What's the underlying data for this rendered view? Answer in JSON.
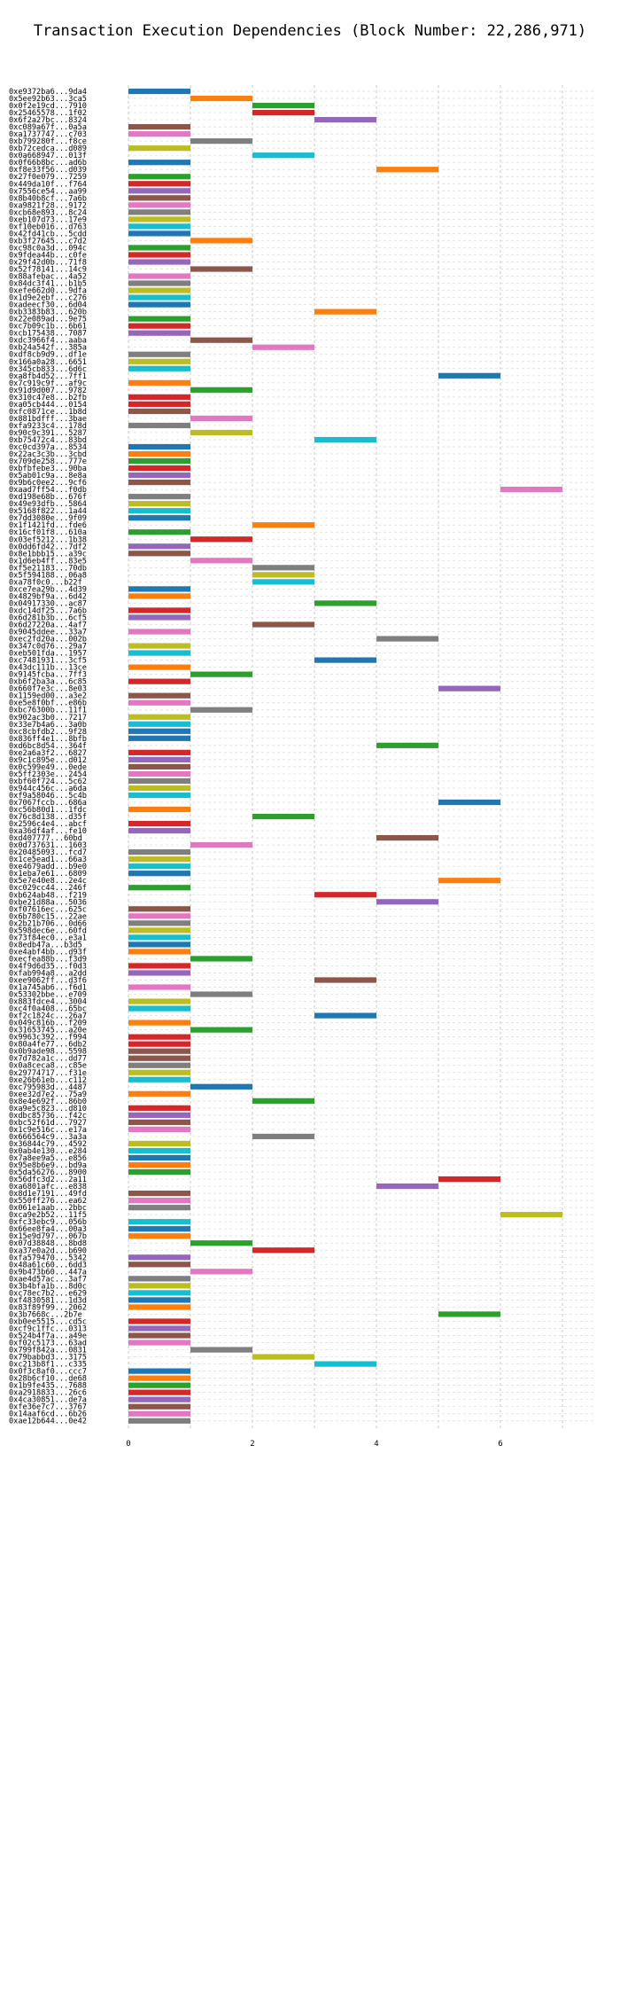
{
  "chart_data": {
    "type": "bar",
    "orientation": "horizontal",
    "title": "Transaction Execution Dependencies (Block Number: 22,286,971)",
    "xlabel": "",
    "ylabel": "",
    "xlim": [
      0,
      7.5
    ],
    "x_ticks": [
      "0",
      "2",
      "4",
      "6"
    ],
    "x_tick_values": [
      0,
      2,
      4,
      6
    ],
    "grid": true,
    "legend": "none",
    "palette": [
      "#1f77b4",
      "#ff7f0e",
      "#2ca02c",
      "#d62728",
      "#9467bd",
      "#8c564b",
      "#e377c2",
      "#7f7f7f",
      "#bcbd22",
      "#17becf"
    ],
    "transactions": [
      {
        "label": "0xe9372ba6...9da4",
        "start": 0,
        "color": "#1f77b4"
      },
      {
        "label": "0x5ee92b63...3ca5",
        "start": 1,
        "color": "#ff7f0e"
      },
      {
        "label": "0x0f2e19cd...7910",
        "start": 2,
        "color": "#2ca02c"
      },
      {
        "label": "0x25465578...1f02",
        "start": 2,
        "color": "#d62728"
      },
      {
        "label": "0x6f2a27bc...8324",
        "start": 3,
        "color": "#9467bd"
      },
      {
        "label": "0xc089a67f...0a5a",
        "start": 0,
        "color": "#8c564b"
      },
      {
        "label": "0xa1737747...c703",
        "start": 0,
        "color": "#e377c2"
      },
      {
        "label": "0xb799280f...f8ce",
        "start": 1,
        "color": "#7f7f7f"
      },
      {
        "label": "0xb72cedca...d089",
        "start": 0,
        "color": "#bcbd22"
      },
      {
        "label": "0x0a668947...013f",
        "start": 2,
        "color": "#17becf"
      },
      {
        "label": "0x0f66b8bc...ad6b",
        "start": 0,
        "color": "#1f77b4"
      },
      {
        "label": "0xf8e33f56...d039",
        "start": 4,
        "color": "#ff7f0e"
      },
      {
        "label": "0x27f0e079...7259",
        "start": 0,
        "color": "#2ca02c"
      },
      {
        "label": "0x449da10f...f764",
        "start": 0,
        "color": "#d62728"
      },
      {
        "label": "0x7556ce54...aa99",
        "start": 0,
        "color": "#9467bd"
      },
      {
        "label": "0x8b40b8cf...7a6b",
        "start": 0,
        "color": "#8c564b"
      },
      {
        "label": "0xa9821f28...9172",
        "start": 0,
        "color": "#e377c2"
      },
      {
        "label": "0xcb68e893...8c24",
        "start": 0,
        "color": "#7f7f7f"
      },
      {
        "label": "0xeb107d73...17e9",
        "start": 0,
        "color": "#bcbd22"
      },
      {
        "label": "0xf10eb016...d763",
        "start": 0,
        "color": "#17becf"
      },
      {
        "label": "0x42fd41cb...5cdd",
        "start": 0,
        "color": "#1f77b4"
      },
      {
        "label": "0xb3f27645...c7d2",
        "start": 1,
        "color": "#ff7f0e"
      },
      {
        "label": "0xc98c0a3d...094c",
        "start": 0,
        "color": "#2ca02c"
      },
      {
        "label": "0x9fdea44b...c0fe",
        "start": 0,
        "color": "#d62728"
      },
      {
        "label": "0x29f42d0b...71f8",
        "start": 0,
        "color": "#9467bd"
      },
      {
        "label": "0x52f78141...14c9",
        "start": 1,
        "color": "#8c564b"
      },
      {
        "label": "0x88afebac...4a52",
        "start": 0,
        "color": "#e377c2"
      },
      {
        "label": "0x84dc3f41...b1b5",
        "start": 0,
        "color": "#7f7f7f"
      },
      {
        "label": "0xefe662d0...9dfa",
        "start": 0,
        "color": "#bcbd22"
      },
      {
        "label": "0x1d9e2ebf...c276",
        "start": 0,
        "color": "#17becf"
      },
      {
        "label": "0xadeecf30...6d04",
        "start": 0,
        "color": "#1f77b4"
      },
      {
        "label": "0xb3383b83...620b",
        "start": 3,
        "color": "#ff7f0e"
      },
      {
        "label": "0x22e089ad...9e75",
        "start": 0,
        "color": "#2ca02c"
      },
      {
        "label": "0xc7b09c1b...6b61",
        "start": 0,
        "color": "#d62728"
      },
      {
        "label": "0xcb175438...7087",
        "start": 0,
        "color": "#9467bd"
      },
      {
        "label": "0xdc3966f4...aaba",
        "start": 1,
        "color": "#8c564b"
      },
      {
        "label": "0xb24a542f...385a",
        "start": 2,
        "color": "#e377c2"
      },
      {
        "label": "0xdf8cb9d9...df1e",
        "start": 0,
        "color": "#7f7f7f"
      },
      {
        "label": "0x166a0a28...6651",
        "start": 0,
        "color": "#bcbd22"
      },
      {
        "label": "0x345cb833...6d6c",
        "start": 0,
        "color": "#17becf"
      },
      {
        "label": "0xa8fb4d52...7ff1",
        "start": 5,
        "color": "#1f77b4"
      },
      {
        "label": "0x7c919c9f...af9c",
        "start": 0,
        "color": "#ff7f0e"
      },
      {
        "label": "0x91d9d007...9782",
        "start": 1,
        "color": "#2ca02c"
      },
      {
        "label": "0x310c47e8...b2fb",
        "start": 0,
        "color": "#d62728"
      },
      {
        "label": "0xa05cb444...0154",
        "start": 0,
        "color": "#d62728"
      },
      {
        "label": "0xfc0871ce...1b8d",
        "start": 0,
        "color": "#8c564b"
      },
      {
        "label": "0x881bdfff...3bae",
        "start": 1,
        "color": "#e377c2"
      },
      {
        "label": "0xfa9233c4...178d",
        "start": 0,
        "color": "#7f7f7f"
      },
      {
        "label": "0x90c9c391...5287",
        "start": 1,
        "color": "#bcbd22"
      },
      {
        "label": "0xb75472c4...83bd",
        "start": 3,
        "color": "#17becf"
      },
      {
        "label": "0xc0cd397a...8534",
        "start": 0,
        "color": "#1f77b4"
      },
      {
        "label": "0x22ac3c3b...3cbd",
        "start": 0,
        "color": "#ff7f0e"
      },
      {
        "label": "0x709de258...777e",
        "start": 0,
        "color": "#2ca02c"
      },
      {
        "label": "0xbfbfebe3...90ba",
        "start": 0,
        "color": "#d62728"
      },
      {
        "label": "0x5ab01c9a...8e8a",
        "start": 0,
        "color": "#9467bd"
      },
      {
        "label": "0x9b6c0ee2...9cf6",
        "start": 0,
        "color": "#8c564b"
      },
      {
        "label": "0xaad7ff54...f0db",
        "start": 6,
        "color": "#e377c2"
      },
      {
        "label": "0xd198e68b...676f",
        "start": 0,
        "color": "#7f7f7f"
      },
      {
        "label": "0x49e93dfb...5864",
        "start": 0,
        "color": "#bcbd22"
      },
      {
        "label": "0x5168f822...1a44",
        "start": 0,
        "color": "#17becf"
      },
      {
        "label": "0x7dd3080e...9f09",
        "start": 0,
        "color": "#1f77b4"
      },
      {
        "label": "0x1f1421fd...fde6",
        "start": 2,
        "color": "#ff7f0e"
      },
      {
        "label": "0x16cf01f8...610a",
        "start": 0,
        "color": "#2ca02c"
      },
      {
        "label": "0x03ef5212...1b38",
        "start": 1,
        "color": "#d62728"
      },
      {
        "label": "0x0dd6fd42...7df2",
        "start": 0,
        "color": "#9467bd"
      },
      {
        "label": "0x8e1bbb15...a39c",
        "start": 0,
        "color": "#8c564b"
      },
      {
        "label": "0x1d6eb4ff...83e5",
        "start": 1,
        "color": "#e377c2"
      },
      {
        "label": "0xf5e21183...70db",
        "start": 2,
        "color": "#7f7f7f"
      },
      {
        "label": "0x5f594188...06a8",
        "start": 2,
        "color": "#bcbd22"
      },
      {
        "label": "0xa78f0c0...b22f",
        "start": 2,
        "color": "#17becf"
      },
      {
        "label": "0xce7ea29b...4d39",
        "start": 0,
        "color": "#1f77b4"
      },
      {
        "label": "0x4829bf9a...6d42",
        "start": 0,
        "color": "#ff7f0e"
      },
      {
        "label": "0x04917330...ac87",
        "start": 3,
        "color": "#2ca02c"
      },
      {
        "label": "0xdc14df25...7a6b",
        "start": 0,
        "color": "#d62728"
      },
      {
        "label": "0x6d281b3b...6cf5",
        "start": 0,
        "color": "#9467bd"
      },
      {
        "label": "0x6d27220a...4af7",
        "start": 2,
        "color": "#8c564b"
      },
      {
        "label": "0x9045ddee...33a7",
        "start": 0,
        "color": "#e377c2"
      },
      {
        "label": "0xec2fd20a...002b",
        "start": 4,
        "color": "#7f7f7f"
      },
      {
        "label": "0x347c0d76...29a7",
        "start": 0,
        "color": "#bcbd22"
      },
      {
        "label": "0xeb501fda...1957",
        "start": 0,
        "color": "#17becf"
      },
      {
        "label": "0xc7481931...3cf5",
        "start": 3,
        "color": "#1f77b4"
      },
      {
        "label": "0x43dc111b...13ce",
        "start": 0,
        "color": "#ff7f0e"
      },
      {
        "label": "0x9145fcba...7ff3",
        "start": 1,
        "color": "#2ca02c"
      },
      {
        "label": "0xb6f2ba3a...6c85",
        "start": 0,
        "color": "#d62728"
      },
      {
        "label": "0x660f7e3c...8e03",
        "start": 5,
        "color": "#9467bd"
      },
      {
        "label": "0x1159ed00...a3e2",
        "start": 0,
        "color": "#8c564b"
      },
      {
        "label": "0xe5e8f0bf...e86b",
        "start": 0,
        "color": "#e377c2"
      },
      {
        "label": "0xbc76300b...11f1",
        "start": 1,
        "color": "#7f7f7f"
      },
      {
        "label": "0x902ac3b0...7217",
        "start": 0,
        "color": "#bcbd22"
      },
      {
        "label": "0x33e7b4a6...3a0b",
        "start": 0,
        "color": "#17becf"
      },
      {
        "label": "0xc8cbfdb2...9f28",
        "start": 0,
        "color": "#1f77b4"
      },
      {
        "label": "0x836ff4e1...8bfb",
        "start": 0,
        "color": "#1f77b4"
      },
      {
        "label": "0xd6bc8d54...364f",
        "start": 4,
        "color": "#2ca02c"
      },
      {
        "label": "0xe2a6a3f2...6827",
        "start": 0,
        "color": "#d62728"
      },
      {
        "label": "0x9c1c895e...d012",
        "start": 0,
        "color": "#9467bd"
      },
      {
        "label": "0x0c599e49...0ede",
        "start": 0,
        "color": "#8c564b"
      },
      {
        "label": "0x5ff2303e...2454",
        "start": 0,
        "color": "#e377c2"
      },
      {
        "label": "0xbf60f724...5c62",
        "start": 0,
        "color": "#7f7f7f"
      },
      {
        "label": "0x944c456c...a6da",
        "start": 0,
        "color": "#bcbd22"
      },
      {
        "label": "0xf9a58046...5c4b",
        "start": 0,
        "color": "#17becf"
      },
      {
        "label": "0x7067fccb...686a",
        "start": 5,
        "color": "#1f77b4"
      },
      {
        "label": "0xc56b80d1...1fdc",
        "start": 0,
        "color": "#ff7f0e"
      },
      {
        "label": "0x76c8d138...d35f",
        "start": 2,
        "color": "#2ca02c"
      },
      {
        "label": "0x2596c4e4...abcf",
        "start": 0,
        "color": "#d62728"
      },
      {
        "label": "0xa36df4af...fe10",
        "start": 0,
        "color": "#9467bd"
      },
      {
        "label": "0xd407777...60bd",
        "start": 4,
        "color": "#8c564b"
      },
      {
        "label": "0x0d737631...1603",
        "start": 1,
        "color": "#e377c2"
      },
      {
        "label": "0x20485093...fcd7",
        "start": 0,
        "color": "#7f7f7f"
      },
      {
        "label": "0x1ce5ead1...66a3",
        "start": 0,
        "color": "#bcbd22"
      },
      {
        "label": "0xe4679add...b9e0",
        "start": 0,
        "color": "#17becf"
      },
      {
        "label": "0x1eba7e61...6809",
        "start": 0,
        "color": "#1f77b4"
      },
      {
        "label": "0x5e7e40e8...2e4c",
        "start": 5,
        "color": "#ff7f0e"
      },
      {
        "label": "0xc029cc44...246f",
        "start": 0,
        "color": "#2ca02c"
      },
      {
        "label": "0xb624ab48...f219",
        "start": 3,
        "color": "#d62728"
      },
      {
        "label": "0xbe21d88a...5036",
        "start": 4,
        "color": "#9467bd"
      },
      {
        "label": "0xf07616ec...625c",
        "start": 0,
        "color": "#8c564b"
      },
      {
        "label": "0x6b780c15...22ae",
        "start": 0,
        "color": "#e377c2"
      },
      {
        "label": "0x2b21b706...0d66",
        "start": 0,
        "color": "#7f7f7f"
      },
      {
        "label": "0x598dec6e...60fd",
        "start": 0,
        "color": "#bcbd22"
      },
      {
        "label": "0x73f84ec0...e3a1",
        "start": 0,
        "color": "#17becf"
      },
      {
        "label": "0x8edb47a...b3d5",
        "start": 0,
        "color": "#1f77b4"
      },
      {
        "label": "0xe4abf4bb...d93f",
        "start": 0,
        "color": "#ff7f0e"
      },
      {
        "label": "0xecfea88b...f3d9",
        "start": 1,
        "color": "#2ca02c"
      },
      {
        "label": "0x4f9d6d35...f0d3",
        "start": 0,
        "color": "#d62728"
      },
      {
        "label": "0xfab994a8...a2dd",
        "start": 0,
        "color": "#9467bd"
      },
      {
        "label": "0xee9062ff...d3f6",
        "start": 3,
        "color": "#8c564b"
      },
      {
        "label": "0x1a745ab6...f6d1",
        "start": 0,
        "color": "#e377c2"
      },
      {
        "label": "0x53302bbe...e709",
        "start": 1,
        "color": "#7f7f7f"
      },
      {
        "label": "0x883fdce4...3004",
        "start": 0,
        "color": "#bcbd22"
      },
      {
        "label": "0xc4f0a408...65bc",
        "start": 0,
        "color": "#17becf"
      },
      {
        "label": "0xf2c1824c...26a7",
        "start": 3,
        "color": "#1f77b4"
      },
      {
        "label": "0x049c816b...f209",
        "start": 0,
        "color": "#ff7f0e"
      },
      {
        "label": "0x31653745...a20e",
        "start": 1,
        "color": "#2ca02c"
      },
      {
        "label": "0x9963c392...f994",
        "start": 0,
        "color": "#d62728"
      },
      {
        "label": "0x80a4fe77...6db2",
        "start": 0,
        "color": "#d62728"
      },
      {
        "label": "0x0b9ade98...5598",
        "start": 0,
        "color": "#8c564b"
      },
      {
        "label": "0x7d782a1c...dd77",
        "start": 0,
        "color": "#8c564b"
      },
      {
        "label": "0x0a8ceca8...c85e",
        "start": 0,
        "color": "#7f7f7f"
      },
      {
        "label": "0x29774717...f31e",
        "start": 0,
        "color": "#bcbd22"
      },
      {
        "label": "0xe26b61eb...c112",
        "start": 0,
        "color": "#17becf"
      },
      {
        "label": "0xc795983d...4487",
        "start": 1,
        "color": "#1f77b4"
      },
      {
        "label": "0xee32d7e2...75a9",
        "start": 0,
        "color": "#ff7f0e"
      },
      {
        "label": "0x8e4e692f...86b0",
        "start": 2,
        "color": "#2ca02c"
      },
      {
        "label": "0xa9e5c823...d810",
        "start": 0,
        "color": "#d62728"
      },
      {
        "label": "0xdbc85736...f42c",
        "start": 0,
        "color": "#9467bd"
      },
      {
        "label": "0xbc52f61d...7927",
        "start": 0,
        "color": "#8c564b"
      },
      {
        "label": "0x1c9e516c...e17a",
        "start": 0,
        "color": "#e377c2"
      },
      {
        "label": "0x666564c9...3a3a",
        "start": 2,
        "color": "#7f7f7f"
      },
      {
        "label": "0x36844c79...4592",
        "start": 0,
        "color": "#bcbd22"
      },
      {
        "label": "0x0ab4e130...e284",
        "start": 0,
        "color": "#17becf"
      },
      {
        "label": "0x7a8ee9a5...e856",
        "start": 0,
        "color": "#1f77b4"
      },
      {
        "label": "0x95e8b6e9...bd9a",
        "start": 0,
        "color": "#ff7f0e"
      },
      {
        "label": "0x5da56276...8900",
        "start": 0,
        "color": "#2ca02c"
      },
      {
        "label": "0x56dfc3d2...2a11",
        "start": 5,
        "color": "#d62728"
      },
      {
        "label": "0xa6801afc...e838",
        "start": 4,
        "color": "#9467bd"
      },
      {
        "label": "0x8d1e7191...49fd",
        "start": 0,
        "color": "#8c564b"
      },
      {
        "label": "0x550ff276...ea62",
        "start": 0,
        "color": "#e377c2"
      },
      {
        "label": "0x061e1aab...2bbc",
        "start": 0,
        "color": "#7f7f7f"
      },
      {
        "label": "0xca9e2b52...11f5",
        "start": 6,
        "color": "#bcbd22"
      },
      {
        "label": "0xfc33ebc9...056b",
        "start": 0,
        "color": "#17becf"
      },
      {
        "label": "0x66ee8fa4...00a3",
        "start": 0,
        "color": "#1f77b4"
      },
      {
        "label": "0x15e9d797...067b",
        "start": 0,
        "color": "#ff7f0e"
      },
      {
        "label": "0x07d38848...8bd8",
        "start": 1,
        "color": "#2ca02c"
      },
      {
        "label": "0xa37e0a2d...b690",
        "start": 2,
        "color": "#d62728"
      },
      {
        "label": "0xfa579470...5342",
        "start": 0,
        "color": "#9467bd"
      },
      {
        "label": "0x48a61c60...6dd3",
        "start": 0,
        "color": "#8c564b"
      },
      {
        "label": "0x9b473b60...447a",
        "start": 1,
        "color": "#e377c2"
      },
      {
        "label": "0xae4d57ac...3af7",
        "start": 0,
        "color": "#7f7f7f"
      },
      {
        "label": "0x3b4bfa1b...8d0c",
        "start": 0,
        "color": "#bcbd22"
      },
      {
        "label": "0xc78ec7b2...e629",
        "start": 0,
        "color": "#17becf"
      },
      {
        "label": "0xf4830581...1d3d",
        "start": 0,
        "color": "#1f77b4"
      },
      {
        "label": "0x83f89f99...2062",
        "start": 0,
        "color": "#ff7f0e"
      },
      {
        "label": "0x3b7668c...2b7e",
        "start": 5,
        "color": "#2ca02c"
      },
      {
        "label": "0xb0ee5515...cd5c",
        "start": 0,
        "color": "#d62728"
      },
      {
        "label": "0xcf9c1ffc...0313",
        "start": 0,
        "color": "#9467bd"
      },
      {
        "label": "0x524b4f7a...a49e",
        "start": 0,
        "color": "#8c564b"
      },
      {
        "label": "0xf02c5173...63ad",
        "start": 0,
        "color": "#e377c2"
      },
      {
        "label": "0x799f842a...0831",
        "start": 1,
        "color": "#7f7f7f"
      },
      {
        "label": "0x79babbd3...3175",
        "start": 2,
        "color": "#bcbd22"
      },
      {
        "label": "0xc213b8f1...c335",
        "start": 3,
        "color": "#17becf"
      },
      {
        "label": "0x0f3c8af0...ccc7",
        "start": 0,
        "color": "#1f77b4"
      },
      {
        "label": "0x28b6cf10...de68",
        "start": 0,
        "color": "#ff7f0e"
      },
      {
        "label": "0x1b9fe435...7688",
        "start": 0,
        "color": "#2ca02c"
      },
      {
        "label": "0xa2918833...26c6",
        "start": 0,
        "color": "#d62728"
      },
      {
        "label": "0x4ca30851...de7a",
        "start": 0,
        "color": "#9467bd"
      },
      {
        "label": "0xfe36e7c7...3767",
        "start": 0,
        "color": "#8c564b"
      },
      {
        "label": "0x14aaf6cd...6b26",
        "start": 0,
        "color": "#e377c2"
      },
      {
        "label": "0xae12b644...0e42",
        "start": 0,
        "color": "#7f7f7f"
      }
    ]
  }
}
